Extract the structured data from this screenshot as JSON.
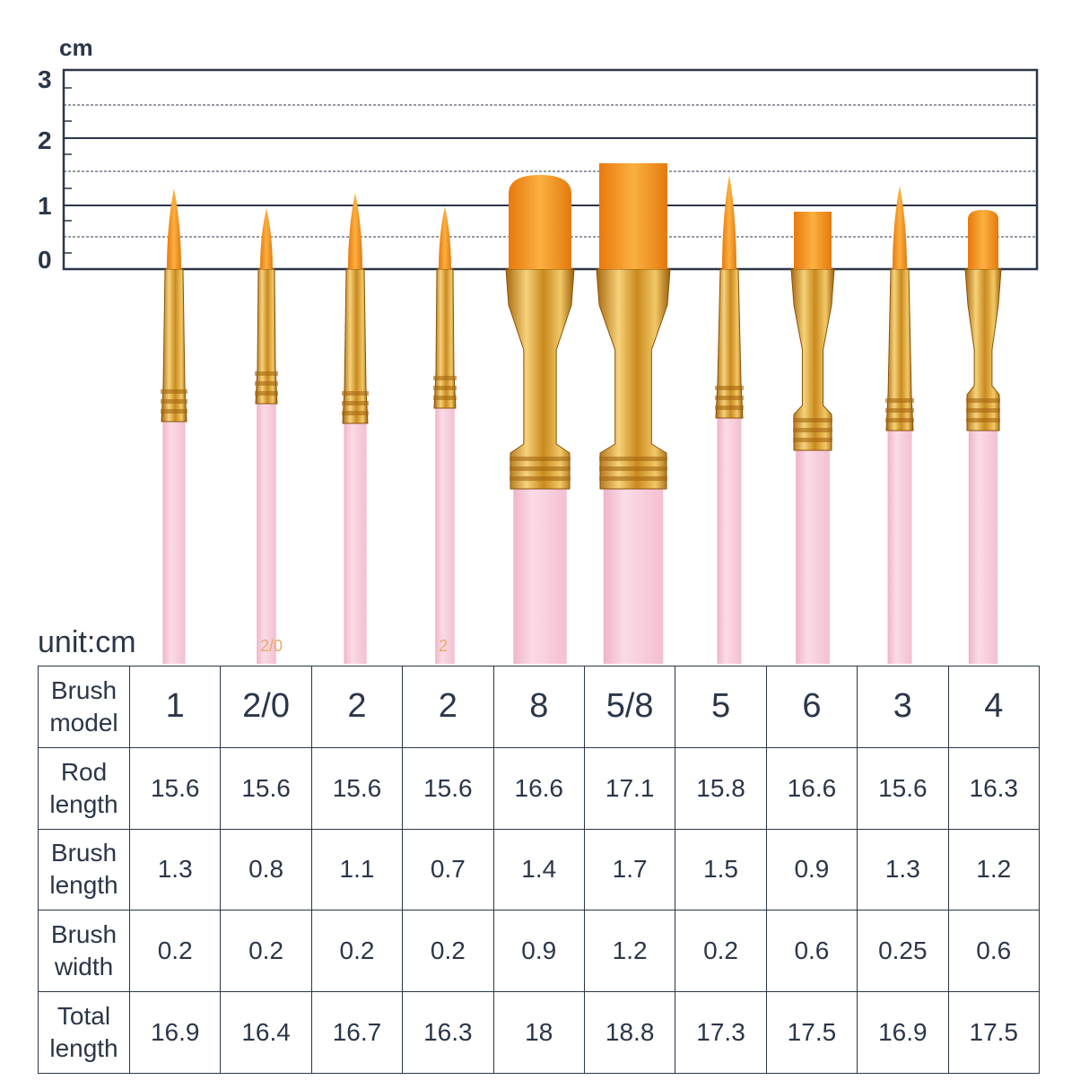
{
  "ruler": {
    "unit": "cm",
    "ticks": [
      "3",
      "2",
      "1",
      "0"
    ]
  },
  "table": {
    "unit_label": "unit:cm",
    "rows": [
      {
        "label": "Brush model",
        "values": [
          "1",
          "2/0",
          "2",
          "2",
          "8",
          "5/8",
          "5",
          "6",
          "3",
          "4"
        ]
      },
      {
        "label": "Rod length",
        "values": [
          "15.6",
          "15.6",
          "15.6",
          "15.6",
          "16.6",
          "17.1",
          "15.8",
          "16.6",
          "15.6",
          "16.3"
        ]
      },
      {
        "label": "Brush length",
        "values": [
          "1.3",
          "0.8",
          "1.1",
          "0.7",
          "1.4",
          "1.7",
          "1.5",
          "0.9",
          "1.3",
          "1.2"
        ]
      },
      {
        "label": "Brush width",
        "values": [
          "0.2",
          "0.2",
          "0.2",
          "0.2",
          "0.9",
          "1.2",
          "0.2",
          "0.6",
          "0.25",
          "0.6"
        ]
      },
      {
        "label": "Total length",
        "values": [
          "16.9",
          "16.4",
          "16.7",
          "16.3",
          "18",
          "18.8",
          "17.3",
          "17.5",
          "16.9",
          "17.5"
        ]
      }
    ]
  },
  "brushes": [
    {
      "model": "1",
      "type": "round",
      "handle_marking": ""
    },
    {
      "model": "2/0",
      "type": "round",
      "handle_marking": "2/0"
    },
    {
      "model": "2",
      "type": "round",
      "handle_marking": ""
    },
    {
      "model": "2",
      "type": "round",
      "handle_marking": "2"
    },
    {
      "model": "8",
      "type": "filbert",
      "handle_marking": ""
    },
    {
      "model": "5/8",
      "type": "flat",
      "handle_marking": ""
    },
    {
      "model": "5",
      "type": "round",
      "handle_marking": ""
    },
    {
      "model": "6",
      "type": "flat",
      "handle_marking": ""
    },
    {
      "model": "3",
      "type": "round",
      "handle_marking": ""
    },
    {
      "model": "4",
      "type": "filbert",
      "handle_marking": ""
    }
  ],
  "colors": {
    "ink": "#2b3648",
    "bristle": "#f39a1e",
    "bristle_dark": "#e0780a",
    "ferrule": "#d89a2a",
    "ferrule_light": "#f6d27a",
    "handle": "#f7c9d9"
  }
}
